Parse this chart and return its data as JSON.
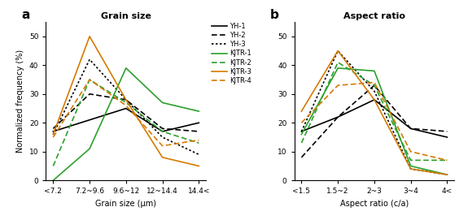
{
  "grain_size_labels": [
    "<7.2",
    "7.2~9.6",
    "9.6~12",
    "12~14.4",
    "14.4<"
  ],
  "aspect_ratio_labels": [
    "<1.5",
    "1.5~2",
    "2~3",
    "3~4",
    "4<"
  ],
  "grain_size": {
    "YH-1": [
      17,
      21,
      25,
      17,
      20
    ],
    "YH-2": [
      18,
      30,
      28,
      18,
      17
    ],
    "YH-3": [
      16,
      42,
      28,
      15,
      9
    ],
    "KJTR-1": [
      0,
      11,
      39,
      27,
      24
    ],
    "KJTR-2": [
      5,
      35,
      27,
      17,
      13
    ],
    "KJTR-3": [
      16,
      50,
      28,
      8,
      5
    ],
    "KJTR-4": [
      15,
      35,
      26,
      12,
      14
    ]
  },
  "aspect_ratio": {
    "YH-1": [
      17,
      22,
      28,
      18,
      15
    ],
    "YH-2": [
      8,
      22,
      33,
      18,
      17
    ],
    "YH-3": [
      17,
      45,
      31,
      4,
      2
    ],
    "KJTR-1": [
      16,
      39,
      38,
      5,
      2
    ],
    "KJTR-2": [
      13,
      41,
      33,
      7,
      7
    ],
    "KJTR-3": [
      24,
      45,
      28,
      4,
      2
    ],
    "KJTR-4": [
      20,
      33,
      34,
      10,
      7
    ]
  },
  "series_styles": {
    "YH-1": {
      "color": "#000000",
      "linestyle": "solid",
      "linewidth": 1.2
    },
    "YH-2": {
      "color": "#000000",
      "linestyle": "dashed",
      "linewidth": 1.2
    },
    "YH-3": {
      "color": "#000000",
      "linestyle": "dotted",
      "linewidth": 1.2
    },
    "KJTR-1": {
      "color": "#2ca02c",
      "linestyle": "solid",
      "linewidth": 1.2
    },
    "KJTR-2": {
      "color": "#2ca02c",
      "linestyle": "dashed",
      "linewidth": 1.2
    },
    "KJTR-3": {
      "color": "#d47b00",
      "linestyle": "solid",
      "linewidth": 1.2
    },
    "KJTR-4": {
      "color": "#d47b00",
      "linestyle": "dashed",
      "linewidth": 1.2
    }
  },
  "title_a": "Grain size",
  "title_b": "Aspect ratio",
  "xlabel_a": "Grain size (μm)",
  "xlabel_b": "Aspect ratio (c/a)",
  "ylabel": "Normalized frequency (%)",
  "ylim": [
    0,
    55
  ],
  "yticks": [
    0,
    10,
    20,
    30,
    40,
    50
  ],
  "label_a": "a",
  "label_b": "b",
  "legend_order": [
    "YH-1",
    "YH-2",
    "YH-3",
    "KJTR-1",
    "KJTR-2",
    "KJTR-3",
    "KJTR-4"
  ],
  "background_color": "#ffffff"
}
